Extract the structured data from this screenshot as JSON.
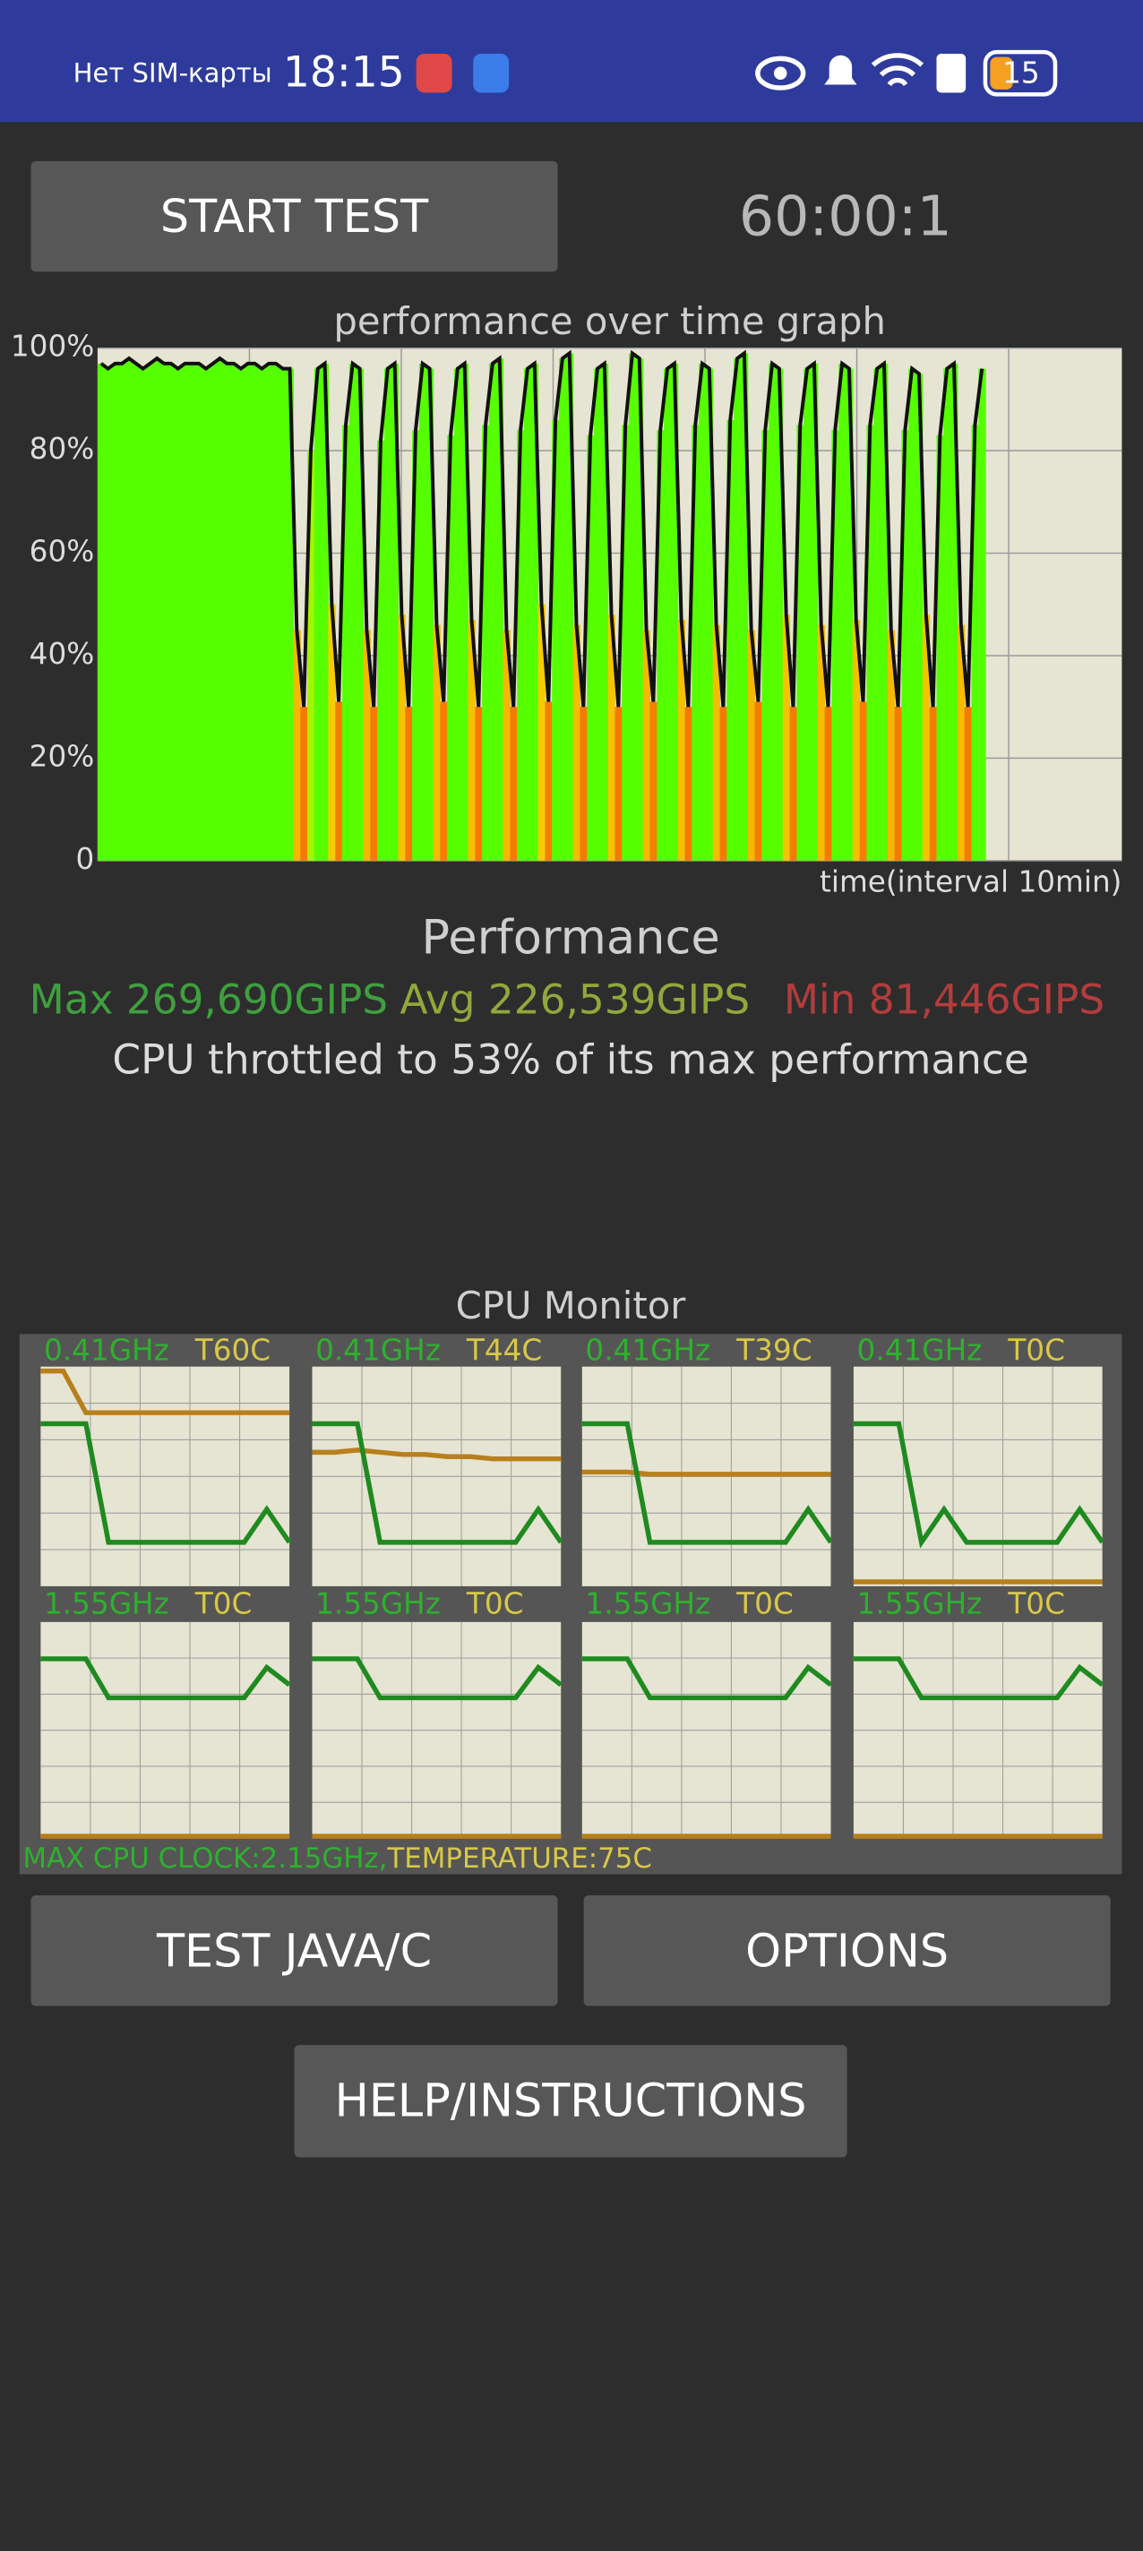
{
  "status_bar": {
    "carrier": "Нет SIM-карты",
    "time": "18:15",
    "battery": "15"
  },
  "start_button": "START TEST",
  "timer": "60:00:1",
  "chart_data": {
    "type": "area",
    "title": "performance over time graph",
    "x_label": "time(interval 10min)",
    "values": [
      97,
      96,
      97,
      97,
      98,
      97,
      96,
      97,
      98,
      97,
      97,
      96,
      97,
      97,
      97,
      96,
      97,
      98,
      97,
      97,
      96,
      97,
      97,
      96,
      97,
      97,
      96,
      96,
      45,
      30,
      80,
      96,
      97,
      50,
      31,
      85,
      97,
      96,
      45,
      30,
      82,
      96,
      97,
      48,
      30,
      84,
      97,
      96,
      46,
      31,
      83,
      96,
      97,
      47,
      30,
      85,
      97,
      98,
      45,
      30,
      84,
      96,
      97,
      50,
      31,
      86,
      98,
      99,
      46,
      30,
      83,
      96,
      97,
      48,
      30,
      85,
      99,
      98,
      45,
      31,
      84,
      96,
      97,
      47,
      30,
      85,
      97,
      96,
      46,
      30,
      86,
      98,
      99,
      45,
      31,
      84,
      97,
      96,
      48,
      30,
      85,
      96,
      97,
      46,
      30,
      84,
      97,
      96,
      47,
      31,
      85,
      96,
      97,
      45,
      30,
      84,
      96,
      95,
      48,
      30,
      83,
      96,
      97,
      46,
      30,
      85,
      96
    ],
    "ylim": [
      0,
      100
    ],
    "yticks": [
      0,
      {
        "value": 20,
        "label": "20%"
      },
      {
        "value": 40,
        "label": "40%"
      },
      {
        "value": 60,
        "label": "60%"
      },
      {
        "value": 80,
        "label": "80%"
      },
      {
        "value": 100,
        "label": "100%"
      }
    ],
    "grid": true,
    "color": "#55ff00",
    "line_color": "#111111"
  },
  "performance": {
    "title": "Performance",
    "max": "Max 269,690GIPS",
    "avg": "Avg 226,539GIPS",
    "min": "Min 81,446GIPS",
    "throttle": "CPU throttled to 53% of its max performance"
  },
  "cpu_monitor": {
    "title": "CPU Monitor",
    "cores": [
      {
        "freq": "0.41GHz",
        "temp": "T60C",
        "freq_values": [
          74,
          74,
          74,
          20,
          20,
          20,
          20,
          20,
          20,
          20,
          35,
          20
        ],
        "temp_values": [
          98,
          98,
          79,
          79,
          79,
          79,
          79,
          79,
          79,
          79,
          79,
          79
        ]
      },
      {
        "freq": "0.41GHz",
        "temp": "T44C",
        "freq_values": [
          74,
          74,
          74,
          20,
          20,
          20,
          20,
          20,
          20,
          20,
          35,
          20
        ],
        "temp_values": [
          61,
          61,
          62,
          61,
          60,
          60,
          59,
          59,
          58,
          58,
          58,
          58
        ]
      },
      {
        "freq": "0.41GHz",
        "temp": "T39C",
        "freq_values": [
          74,
          74,
          74,
          20,
          20,
          20,
          20,
          20,
          20,
          20,
          35,
          20
        ],
        "temp_values": [
          52,
          52,
          52,
          51,
          51,
          51,
          51,
          51,
          51,
          51,
          51,
          51
        ]
      },
      {
        "freq": "0.41GHz",
        "temp": "T0C",
        "freq_values": [
          74,
          74,
          74,
          20,
          35,
          20,
          20,
          20,
          20,
          20,
          35,
          20
        ],
        "temp_values": [
          2,
          2,
          2,
          2,
          2,
          2,
          2,
          2,
          2,
          2,
          2,
          2
        ]
      },
      {
        "freq": "1.55GHz",
        "temp": "T0C",
        "freq_values": [
          83,
          83,
          83,
          65,
          65,
          65,
          65,
          65,
          65,
          65,
          79,
          71
        ],
        "temp_values": [
          1,
          1,
          1,
          1,
          1,
          1,
          1,
          1,
          1,
          1,
          1,
          1
        ]
      },
      {
        "freq": "1.55GHz",
        "temp": "T0C",
        "freq_values": [
          83,
          83,
          83,
          65,
          65,
          65,
          65,
          65,
          65,
          65,
          79,
          71
        ],
        "temp_values": [
          1,
          1,
          1,
          1,
          1,
          1,
          1,
          1,
          1,
          1,
          1,
          1
        ]
      },
      {
        "freq": "1.55GHz",
        "temp": "T0C",
        "freq_values": [
          83,
          83,
          83,
          65,
          65,
          65,
          65,
          65,
          65,
          65,
          79,
          71
        ],
        "temp_values": [
          1,
          1,
          1,
          1,
          1,
          1,
          1,
          1,
          1,
          1,
          1,
          1
        ]
      },
      {
        "freq": "1.55GHz",
        "temp": "T0C",
        "freq_values": [
          83,
          83,
          83,
          65,
          65,
          65,
          65,
          65,
          65,
          65,
          79,
          71
        ],
        "temp_values": [
          1,
          1,
          1,
          1,
          1,
          1,
          1,
          1,
          1,
          1,
          1,
          1
        ]
      }
    ],
    "footer_clock": "MAX CPU CLOCK:2.15GHz,",
    "footer_temp": "TEMPERATURE:75C"
  },
  "buttons": [
    "TEST JAVA/C",
    "OPTIONS",
    "HELP/INSTRUCTIONS"
  ]
}
